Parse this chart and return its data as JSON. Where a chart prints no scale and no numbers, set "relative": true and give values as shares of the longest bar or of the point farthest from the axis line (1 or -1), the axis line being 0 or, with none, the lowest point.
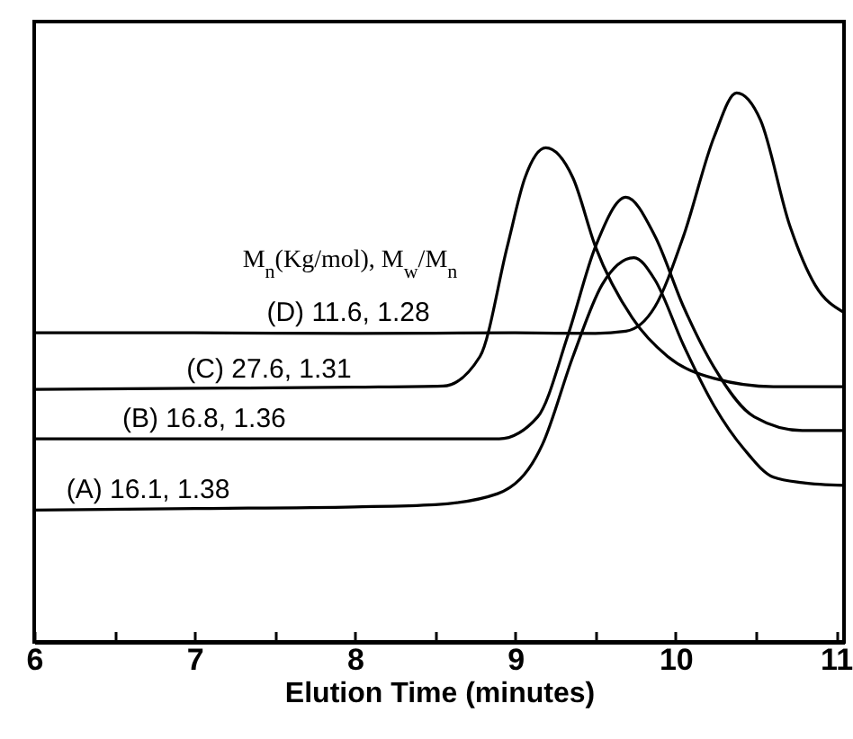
{
  "chart_data": {
    "type": "line",
    "xlabel": "Elution Time (minutes)",
    "legend_title": "M$_{n}$(Kg/mol), M$_{w}$/M$_{n}$",
    "relative": true,
    "legend": false,
    "marker": "none",
    "grid": false,
    "xlim": [
      6,
      11.05
    ],
    "xticks": [
      6,
      {
        "value": 6.5,
        "label": null
      },
      7,
      {
        "value": 7.5,
        "label": null
      },
      8,
      {
        "value": 8.5,
        "label": null
      },
      9,
      {
        "value": 9.5,
        "label": null
      },
      10,
      {
        "value": 10.5,
        "label": null
      },
      11
    ],
    "series": [
      {
        "name": "(D) 11.6, 1.28",
        "color": "#000000",
        "x": [
          6,
          7,
          8,
          9,
          9.5,
          9.69,
          9.87,
          10.05,
          10.24,
          10.38,
          10.53,
          10.71,
          10.87,
          11.05
        ],
        "values": [
          0.563,
          0.563,
          0.562,
          0.563,
          0.562,
          0.566,
          0.61,
          0.74,
          0.92,
          1.0,
          0.95,
          0.76,
          0.65,
          0.6
        ]
      },
      {
        "name": "(C) 27.6, 1.31",
        "color": "#000000",
        "x": [
          6,
          7,
          8,
          8.55,
          8.78,
          8.95,
          9.06,
          9.19,
          9.36,
          9.5,
          9.73,
          9.95,
          10.24,
          10.61,
          11.05
        ],
        "values": [
          0.46,
          0.462,
          0.464,
          0.466,
          0.52,
          0.72,
          0.845,
          0.9,
          0.845,
          0.72,
          0.59,
          0.52,
          0.48,
          0.465,
          0.465
        ]
      },
      {
        "name": "(B) 16.8, 1.36",
        "color": "#000000",
        "x": [
          6,
          7,
          8,
          8.9,
          9.14,
          9.33,
          9.5,
          9.69,
          9.87,
          10.05,
          10.24,
          10.49,
          10.79,
          11.05
        ],
        "values": [
          0.37,
          0.37,
          0.37,
          0.37,
          0.41,
          0.56,
          0.72,
          0.81,
          0.74,
          0.61,
          0.5,
          0.41,
          0.385,
          0.385
        ]
      },
      {
        "name": "(A) 16.1, 1.38",
        "color": "#000000",
        "x": [
          6,
          7,
          8,
          8.5,
          8.89,
          9.17,
          9.36,
          9.54,
          9.74,
          9.87,
          10.05,
          10.24,
          10.43,
          10.61,
          10.79,
          11.05
        ],
        "values": [
          0.24,
          0.243,
          0.246,
          0.25,
          0.27,
          0.36,
          0.52,
          0.65,
          0.7,
          0.66,
          0.54,
          0.43,
          0.35,
          0.3,
          0.29,
          0.285
        ]
      }
    ]
  }
}
